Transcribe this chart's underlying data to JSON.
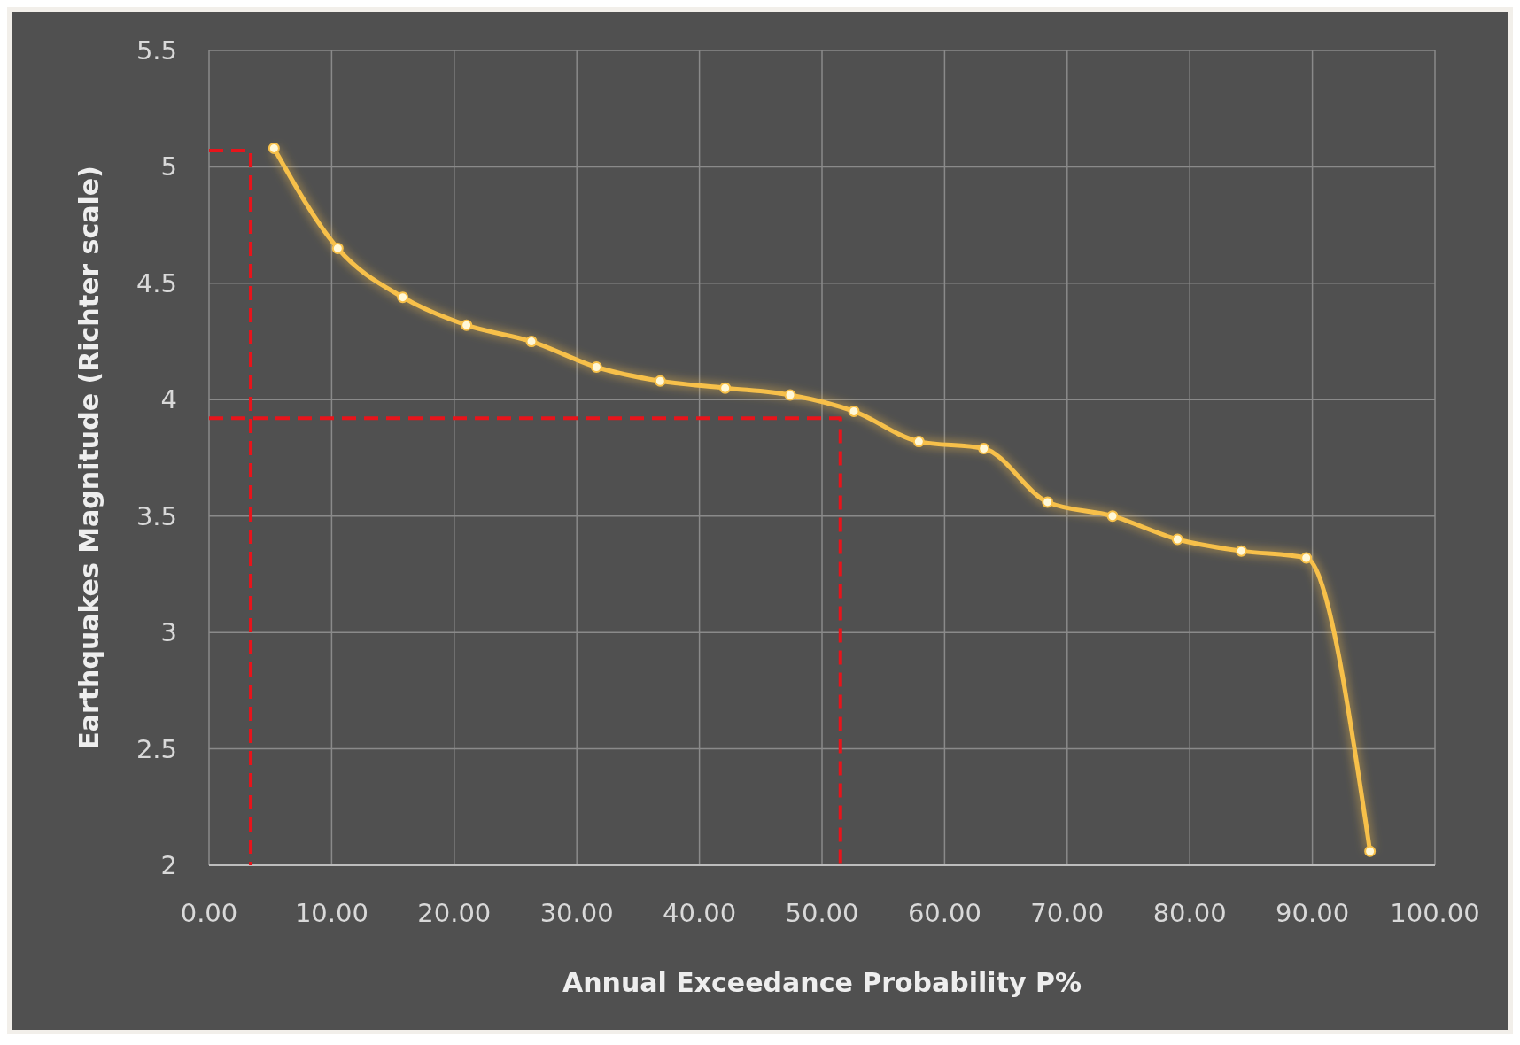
{
  "chart_data": {
    "type": "line",
    "xlabel": "Annual Exceedance Probability P%",
    "ylabel": "Earthquakes Magnitude (Richter scale)",
    "xlim": [
      0,
      100
    ],
    "xticks": [
      {
        "value": 0,
        "label": "0.00"
      },
      {
        "value": 10,
        "label": "10.00"
      },
      {
        "value": 20,
        "label": "20.00"
      },
      {
        "value": 30,
        "label": "30.00"
      },
      {
        "value": 40,
        "label": "40.00"
      },
      {
        "value": 50,
        "label": "50.00"
      },
      {
        "value": 60,
        "label": "60.00"
      },
      {
        "value": 70,
        "label": "70.00"
      },
      {
        "value": 80,
        "label": "80.00"
      },
      {
        "value": 90,
        "label": "90.00"
      },
      {
        "value": 100,
        "label": "100.00"
      }
    ],
    "ylim": [
      2,
      5.5
    ],
    "yticks": [
      2,
      2.5,
      3,
      3.5,
      4,
      4.5,
      5,
      5.5
    ],
    "grid": true,
    "series": [
      {
        "color": "#f7c04a",
        "marker": "circle",
        "line_style": "solid",
        "x": [
          5.3,
          10.5,
          15.8,
          21.0,
          26.3,
          31.6,
          36.8,
          42.1,
          47.4,
          52.6,
          57.9,
          63.2,
          68.4,
          73.7,
          79.0,
          84.2,
          89.5,
          94.7
        ],
        "values": [
          5.08,
          4.65,
          4.44,
          4.32,
          4.25,
          4.14,
          4.08,
          4.05,
          4.02,
          3.95,
          3.82,
          3.79,
          3.56,
          3.5,
          3.4,
          3.35,
          3.32,
          2.06
        ]
      },
      {
        "color": "#e8141b",
        "marker": "none",
        "line_style": "dashed",
        "x": [
          0,
          3.4,
          3.4
        ],
        "values": [
          5.07,
          5.07,
          2
        ]
      },
      {
        "color": "#e8141b",
        "marker": "none",
        "line_style": "dashed",
        "x": [
          0,
          51.5,
          51.5
        ],
        "values": [
          3.92,
          3.92,
          2
        ]
      }
    ]
  }
}
